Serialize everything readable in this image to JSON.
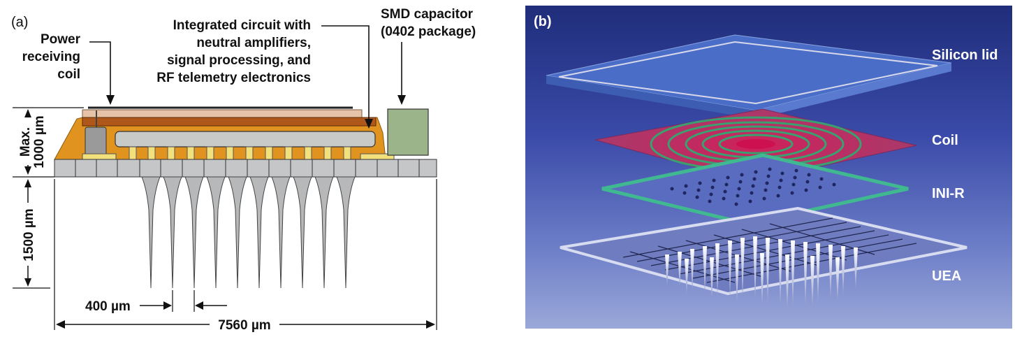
{
  "panel_a": {
    "tag": "(a)",
    "coil_label": [
      "Power",
      "receiving",
      "coil"
    ],
    "ic_label": [
      "Integrated circuit with",
      "neutral amplifiers,",
      "signal processing, and",
      "RF telemetry electronics"
    ],
    "cap_label": [
      "SMD capacitor",
      "(0402 package)"
    ],
    "height_label": [
      "Max.",
      "1000 µm"
    ],
    "needle_label": "1500 µm",
    "pitch_label": "400 µm",
    "width_label": "7560 µm"
  },
  "panel_b": {
    "tag": "(b)",
    "layers": [
      "Silicon lid",
      "Coil",
      "INI-R",
      "UEA"
    ]
  }
}
